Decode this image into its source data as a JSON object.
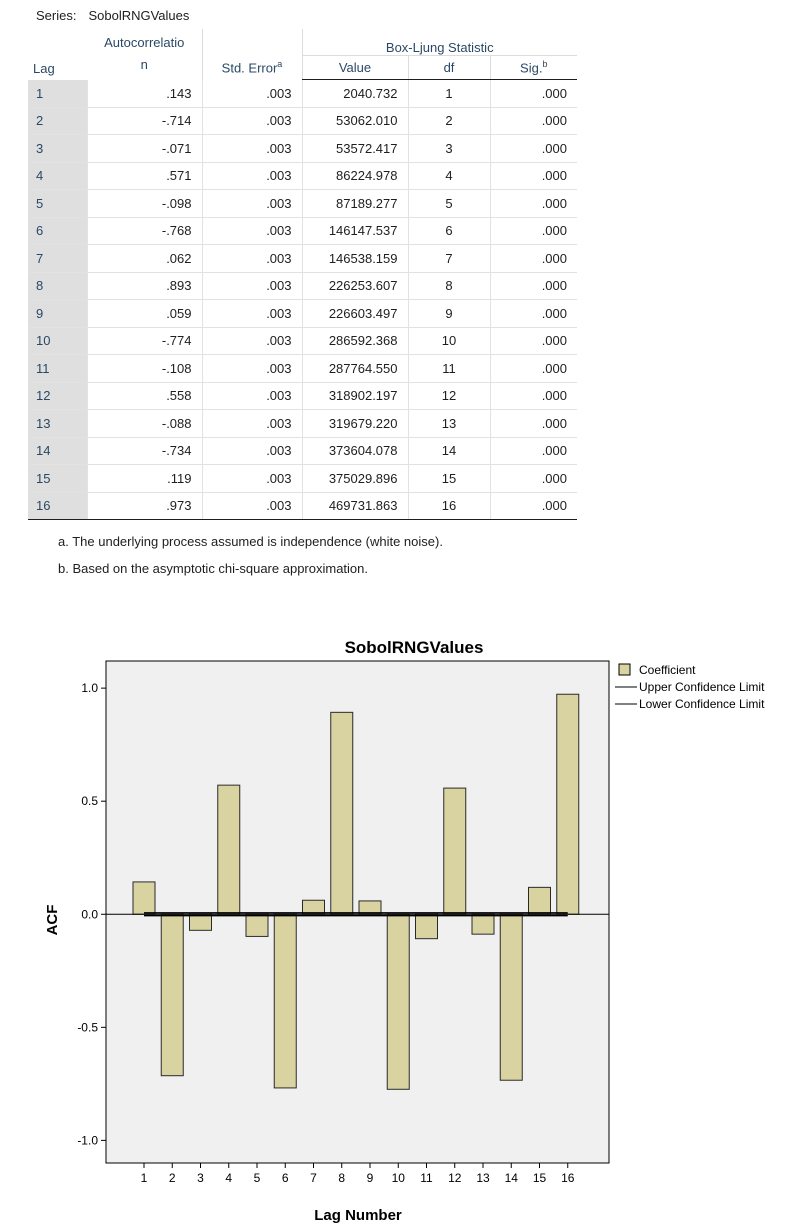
{
  "series_label": "Series:",
  "series_name": "SobolRNGValues",
  "table": {
    "headers": {
      "lag": "Lag",
      "autocorrelation_line1": "Autocorrelatio",
      "autocorrelation_line2": "n",
      "std_error": "Std. Error",
      "std_error_sup": "a",
      "box_ljung": "Box-Ljung Statistic",
      "value": "Value",
      "df": "df",
      "sig": "Sig.",
      "sig_sup": "b"
    },
    "rows": [
      {
        "lag": "1",
        "autocorrelation": ".143",
        "std_error": ".003",
        "value": "2040.732",
        "df": "1",
        "sig": ".000"
      },
      {
        "lag": "2",
        "autocorrelation": "-.714",
        "std_error": ".003",
        "value": "53062.010",
        "df": "2",
        "sig": ".000"
      },
      {
        "lag": "3",
        "autocorrelation": "-.071",
        "std_error": ".003",
        "value": "53572.417",
        "df": "3",
        "sig": ".000"
      },
      {
        "lag": "4",
        "autocorrelation": ".571",
        "std_error": ".003",
        "value": "86224.978",
        "df": "4",
        "sig": ".000"
      },
      {
        "lag": "5",
        "autocorrelation": "-.098",
        "std_error": ".003",
        "value": "87189.277",
        "df": "5",
        "sig": ".000"
      },
      {
        "lag": "6",
        "autocorrelation": "-.768",
        "std_error": ".003",
        "value": "146147.537",
        "df": "6",
        "sig": ".000"
      },
      {
        "lag": "7",
        "autocorrelation": ".062",
        "std_error": ".003",
        "value": "146538.159",
        "df": "7",
        "sig": ".000"
      },
      {
        "lag": "8",
        "autocorrelation": ".893",
        "std_error": ".003",
        "value": "226253.607",
        "df": "8",
        "sig": ".000"
      },
      {
        "lag": "9",
        "autocorrelation": ".059",
        "std_error": ".003",
        "value": "226603.497",
        "df": "9",
        "sig": ".000"
      },
      {
        "lag": "10",
        "autocorrelation": "-.774",
        "std_error": ".003",
        "value": "286592.368",
        "df": "10",
        "sig": ".000"
      },
      {
        "lag": "11",
        "autocorrelation": "-.108",
        "std_error": ".003",
        "value": "287764.550",
        "df": "11",
        "sig": ".000"
      },
      {
        "lag": "12",
        "autocorrelation": ".558",
        "std_error": ".003",
        "value": "318902.197",
        "df": "12",
        "sig": ".000"
      },
      {
        "lag": "13",
        "autocorrelation": "-.088",
        "std_error": ".003",
        "value": "319679.220",
        "df": "13",
        "sig": ".000"
      },
      {
        "lag": "14",
        "autocorrelation": "-.734",
        "std_error": ".003",
        "value": "373604.078",
        "df": "14",
        "sig": ".000"
      },
      {
        "lag": "15",
        "autocorrelation": ".119",
        "std_error": ".003",
        "value": "375029.896",
        "df": "15",
        "sig": ".000"
      },
      {
        "lag": "16",
        "autocorrelation": ".973",
        "std_error": ".003",
        "value": "469731.863",
        "df": "16",
        "sig": ".000"
      }
    ]
  },
  "footnotes": {
    "a": "a. The underlying process assumed is independence (white noise).",
    "b": "b. Based on the asymptotic chi-square approximation."
  },
  "chart_data": {
    "type": "bar",
    "title": "SobolRNGValues",
    "xlabel": "Lag Number",
    "ylabel": "ACF",
    "categories": [
      "1",
      "2",
      "3",
      "4",
      "5",
      "6",
      "7",
      "8",
      "9",
      "10",
      "11",
      "12",
      "13",
      "14",
      "15",
      "16"
    ],
    "series": [
      {
        "name": "Coefficient",
        "values": [
          0.143,
          -0.714,
          -0.071,
          0.571,
          -0.098,
          -0.768,
          0.062,
          0.893,
          0.059,
          -0.774,
          -0.108,
          0.558,
          -0.088,
          -0.734,
          0.119,
          0.973
        ]
      }
    ],
    "confidence_limits": {
      "upper": 0.006,
      "lower": -0.006
    },
    "legend": [
      "Coefficient",
      "Upper Confidence Limit",
      "Lower Confidence Limit"
    ],
    "ylim": [
      -1.1,
      1.12
    ],
    "yticks": [
      "1.0",
      "0.5",
      "0.0",
      "-0.5",
      "-1.0"
    ],
    "ytick_values": [
      1.0,
      0.5,
      0.0,
      -0.5,
      -1.0
    ],
    "legend_position": "right",
    "grid": false,
    "colors": {
      "bar_fill": "#d8d3a0",
      "bar_stroke": "#2a2a2a",
      "plot_bg": "#f0f0f0"
    }
  }
}
